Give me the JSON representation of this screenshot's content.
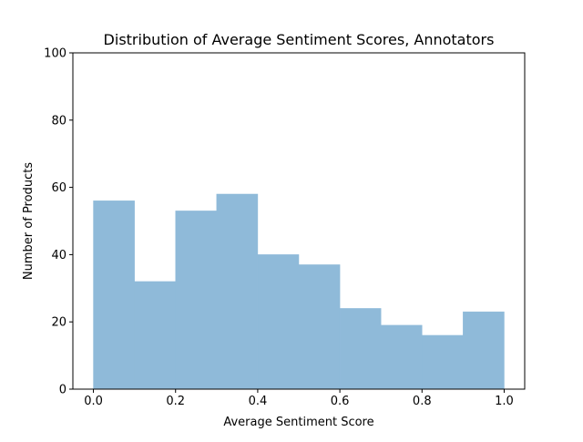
{
  "chart_data": {
    "type": "bar",
    "title": "Distribution of Average Sentiment Scores, Annotators",
    "xlabel": "Average Sentiment Score",
    "ylabel": "Number of Products",
    "xlim": [
      -0.05,
      1.05
    ],
    "ylim": [
      0,
      100
    ],
    "xticks": [
      0.0,
      0.2,
      0.4,
      0.6,
      0.8,
      1.0
    ],
    "xtick_labels": [
      "0.0",
      "0.2",
      "0.4",
      "0.6",
      "0.8",
      "1.0"
    ],
    "yticks": [
      0,
      20,
      40,
      60,
      80,
      100
    ],
    "ytick_labels": [
      "0",
      "20",
      "40",
      "60",
      "80",
      "100"
    ],
    "bin_edges": [
      0.0,
      0.1,
      0.2,
      0.3,
      0.4,
      0.5,
      0.6,
      0.7,
      0.8,
      0.9,
      1.0
    ],
    "values": [
      56,
      32,
      53,
      58,
      40,
      37,
      24,
      19,
      16,
      23
    ],
    "bar_color": "#8fbad9",
    "grid": false
  }
}
